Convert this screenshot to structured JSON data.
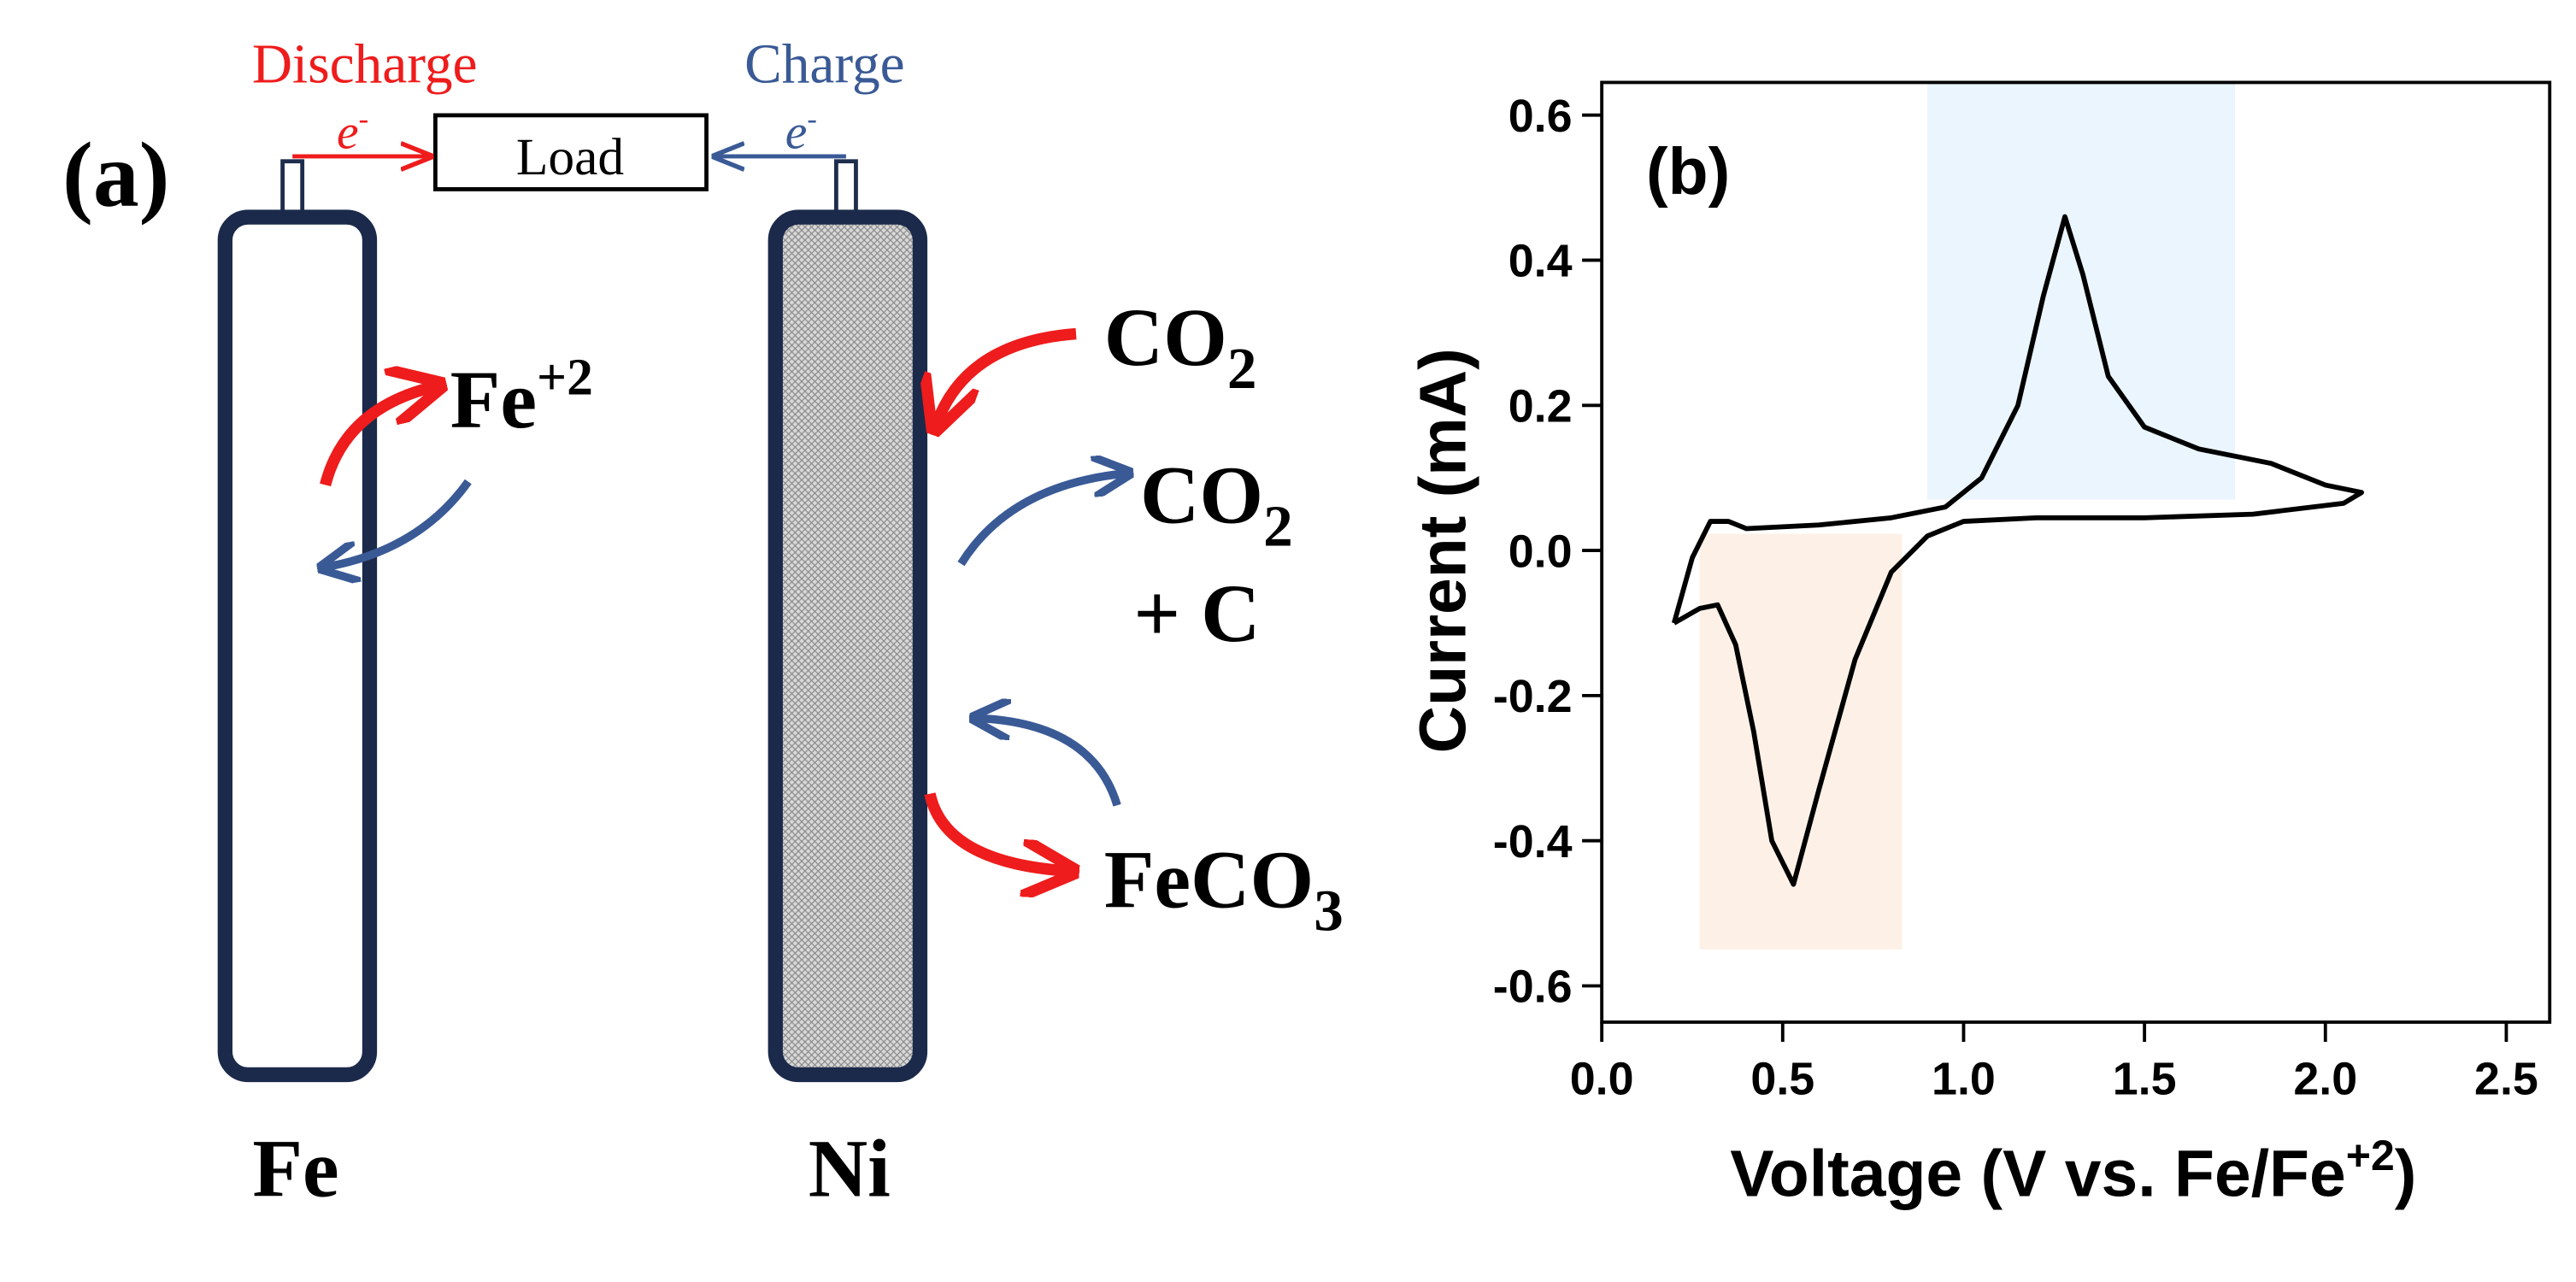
{
  "diagram": {
    "label": "(a)",
    "discharge": "Discharge",
    "charge": "Charge",
    "electron": "e",
    "electron_charge": "-",
    "load": "Load",
    "left_electrode": "Fe",
    "right_electrode": "Ni",
    "ion": "Fe",
    "ion_charge": "+2",
    "gas_in": "CO",
    "gas_in_sub": "2",
    "gas_out": "CO",
    "gas_out_sub": "2",
    "gas_out_extra": "+ C",
    "product": "FeCO",
    "product_sub": "3"
  },
  "chart_data": {
    "type": "line",
    "panel_label": "(b)",
    "xlabel": "Voltage (V vs. Fe/Fe",
    "xlabel_sup": "+2",
    "xlabel_end": ")",
    "ylabel": "Current (mA)",
    "xlim": [
      0,
      2.62
    ],
    "ylim": [
      -0.65,
      0.645
    ],
    "xticks": [
      {
        "value": 0,
        "label": "0.0"
      },
      0.5,
      {
        "value": 1,
        "label": "1.0"
      },
      1.5,
      {
        "value": 2,
        "label": "2.0"
      },
      2.5
    ],
    "yticks": [
      -0.6,
      -0.4,
      -0.2,
      {
        "value": 0,
        "label": "0.0"
      },
      0.2,
      0.4,
      0.6
    ],
    "shaded_regions": [
      {
        "color": "#eaf5fd",
        "x": [
          0.9,
          1.75
        ],
        "y": [
          0.07,
          0.645
        ]
      },
      {
        "color": "#fdf1e7",
        "x": [
          0.27,
          0.83
        ],
        "y": [
          -0.55,
          0.023
        ]
      }
    ],
    "series": [
      {
        "color": "#000000",
        "x": [
          0.2,
          0.25,
          0.3,
          0.35,
          0.4,
          0.6,
          0.8,
          0.95,
          1.05,
          1.15,
          1.22,
          1.28,
          1.33,
          1.4,
          1.5,
          1.65,
          1.85,
          2.0,
          2.1,
          2.05,
          1.8,
          1.5,
          1.2,
          1.0,
          0.9,
          0.8,
          0.7,
          0.6,
          0.53,
          0.47,
          0.42,
          0.37,
          0.32,
          0.27,
          0.2
        ],
        "values": [
          -0.1,
          -0.01,
          0.04,
          0.04,
          0.03,
          0.035,
          0.045,
          0.06,
          0.1,
          0.2,
          0.35,
          0.46,
          0.38,
          0.24,
          0.17,
          0.14,
          0.12,
          0.09,
          0.08,
          0.065,
          0.05,
          0.045,
          0.045,
          0.04,
          0.02,
          -0.03,
          -0.15,
          -0.33,
          -0.46,
          -0.4,
          -0.25,
          -0.13,
          -0.075,
          -0.08,
          -0.1
        ]
      }
    ]
  }
}
